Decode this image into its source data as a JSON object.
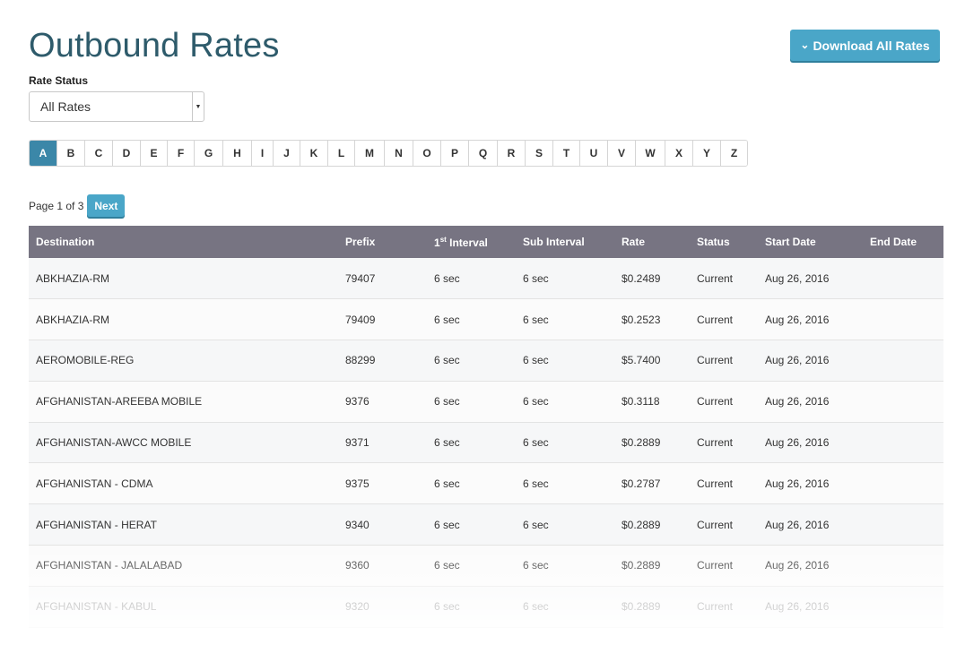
{
  "page": {
    "title": "Outbound Rates"
  },
  "download_button": {
    "label": "Download All Rates",
    "icon": "chevron-down-icon"
  },
  "filter": {
    "label": "Rate Status",
    "selected": "All Rates"
  },
  "alphabet": {
    "letters": [
      "A",
      "B",
      "C",
      "D",
      "E",
      "F",
      "G",
      "H",
      "I",
      "J",
      "K",
      "L",
      "M",
      "N",
      "O",
      "P",
      "Q",
      "R",
      "S",
      "T",
      "U",
      "V",
      "W",
      "X",
      "Y",
      "Z"
    ],
    "active": "A"
  },
  "pagination": {
    "info": "Page 1 of 3",
    "next_label": "Next"
  },
  "colors": {
    "accent": "#4aa6c8",
    "active_letter": "#3b87a8",
    "header_bg": "#777482",
    "title": "#2e5b6b"
  },
  "table": {
    "headers": {
      "destination": "Destination",
      "prefix": "Prefix",
      "first_interval_num": "1",
      "first_interval_sup": "st",
      "first_interval_rest": " Interval",
      "sub_interval": "Sub Interval",
      "rate": "Rate",
      "status": "Status",
      "start_date": "Start Date",
      "end_date": "End Date"
    },
    "rows": [
      [
        "ABKHAZIA-RM",
        "79407",
        "6 sec",
        "6 sec",
        "$0.2489",
        "Current",
        "Aug 26, 2016",
        ""
      ],
      [
        "ABKHAZIA-RM",
        "79409",
        "6 sec",
        "6 sec",
        "$0.2523",
        "Current",
        "Aug 26, 2016",
        ""
      ],
      [
        "AEROMOBILE-REG",
        "88299",
        "6 sec",
        "6 sec",
        "$5.7400",
        "Current",
        "Aug 26, 2016",
        ""
      ],
      [
        "AFGHANISTAN-AREEBA MOBILE",
        "9376",
        "6 sec",
        "6 sec",
        "$0.3118",
        "Current",
        "Aug 26, 2016",
        ""
      ],
      [
        "AFGHANISTAN-AWCC MOBILE",
        "9371",
        "6 sec",
        "6 sec",
        "$0.2889",
        "Current",
        "Aug 26, 2016",
        ""
      ],
      [
        "AFGHANISTAN - CDMA",
        "9375",
        "6 sec",
        "6 sec",
        "$0.2787",
        "Current",
        "Aug 26, 2016",
        ""
      ],
      [
        "AFGHANISTAN - HERAT",
        "9340",
        "6 sec",
        "6 sec",
        "$0.2889",
        "Current",
        "Aug 26, 2016",
        ""
      ],
      [
        "AFGHANISTAN - JALALABAD",
        "9360",
        "6 sec",
        "6 sec",
        "$0.2889",
        "Current",
        "Aug 26, 2016",
        ""
      ],
      [
        "AFGHANISTAN - KABUL",
        "9320",
        "6 sec",
        "6 sec",
        "$0.2889",
        "Current",
        "Aug 26, 2016",
        ""
      ]
    ]
  }
}
